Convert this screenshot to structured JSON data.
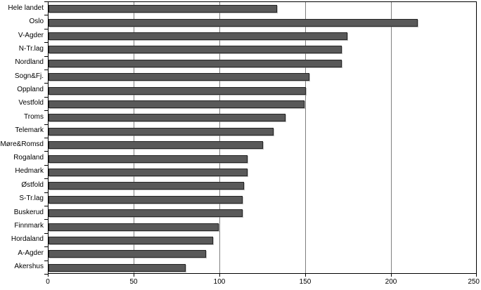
{
  "chart_data": {
    "type": "bar",
    "orientation": "horizontal",
    "title": "",
    "xlabel": "",
    "ylabel": "",
    "categories": [
      "Hele landet",
      "Oslo",
      "V-Agder",
      "N-Tr.lag",
      "Nordland",
      "Sogn&Fj.",
      "Oppland",
      "Vestfold",
      "Troms",
      "Telemark",
      "Møre&Romsd",
      "Rogaland",
      "Hedmark",
      "Østfold",
      "S-Tr.lag",
      "Buskerud",
      "Finnmark",
      "Hordaland",
      "A-Agder",
      "Akershus"
    ],
    "values": [
      133,
      215,
      174,
      171,
      171,
      152,
      150,
      149,
      138,
      131,
      125,
      116,
      116,
      114,
      113,
      113,
      99,
      96,
      92,
      80
    ],
    "xlim": [
      0,
      250
    ],
    "xticks": [
      0,
      50,
      100,
      150,
      200,
      250
    ],
    "grid": true,
    "legend": false,
    "colors": {
      "bar_fill": "#595959",
      "bar_border": "#262626",
      "gridline": "#808080",
      "axis": "#000000",
      "background": "#ffffff"
    }
  }
}
